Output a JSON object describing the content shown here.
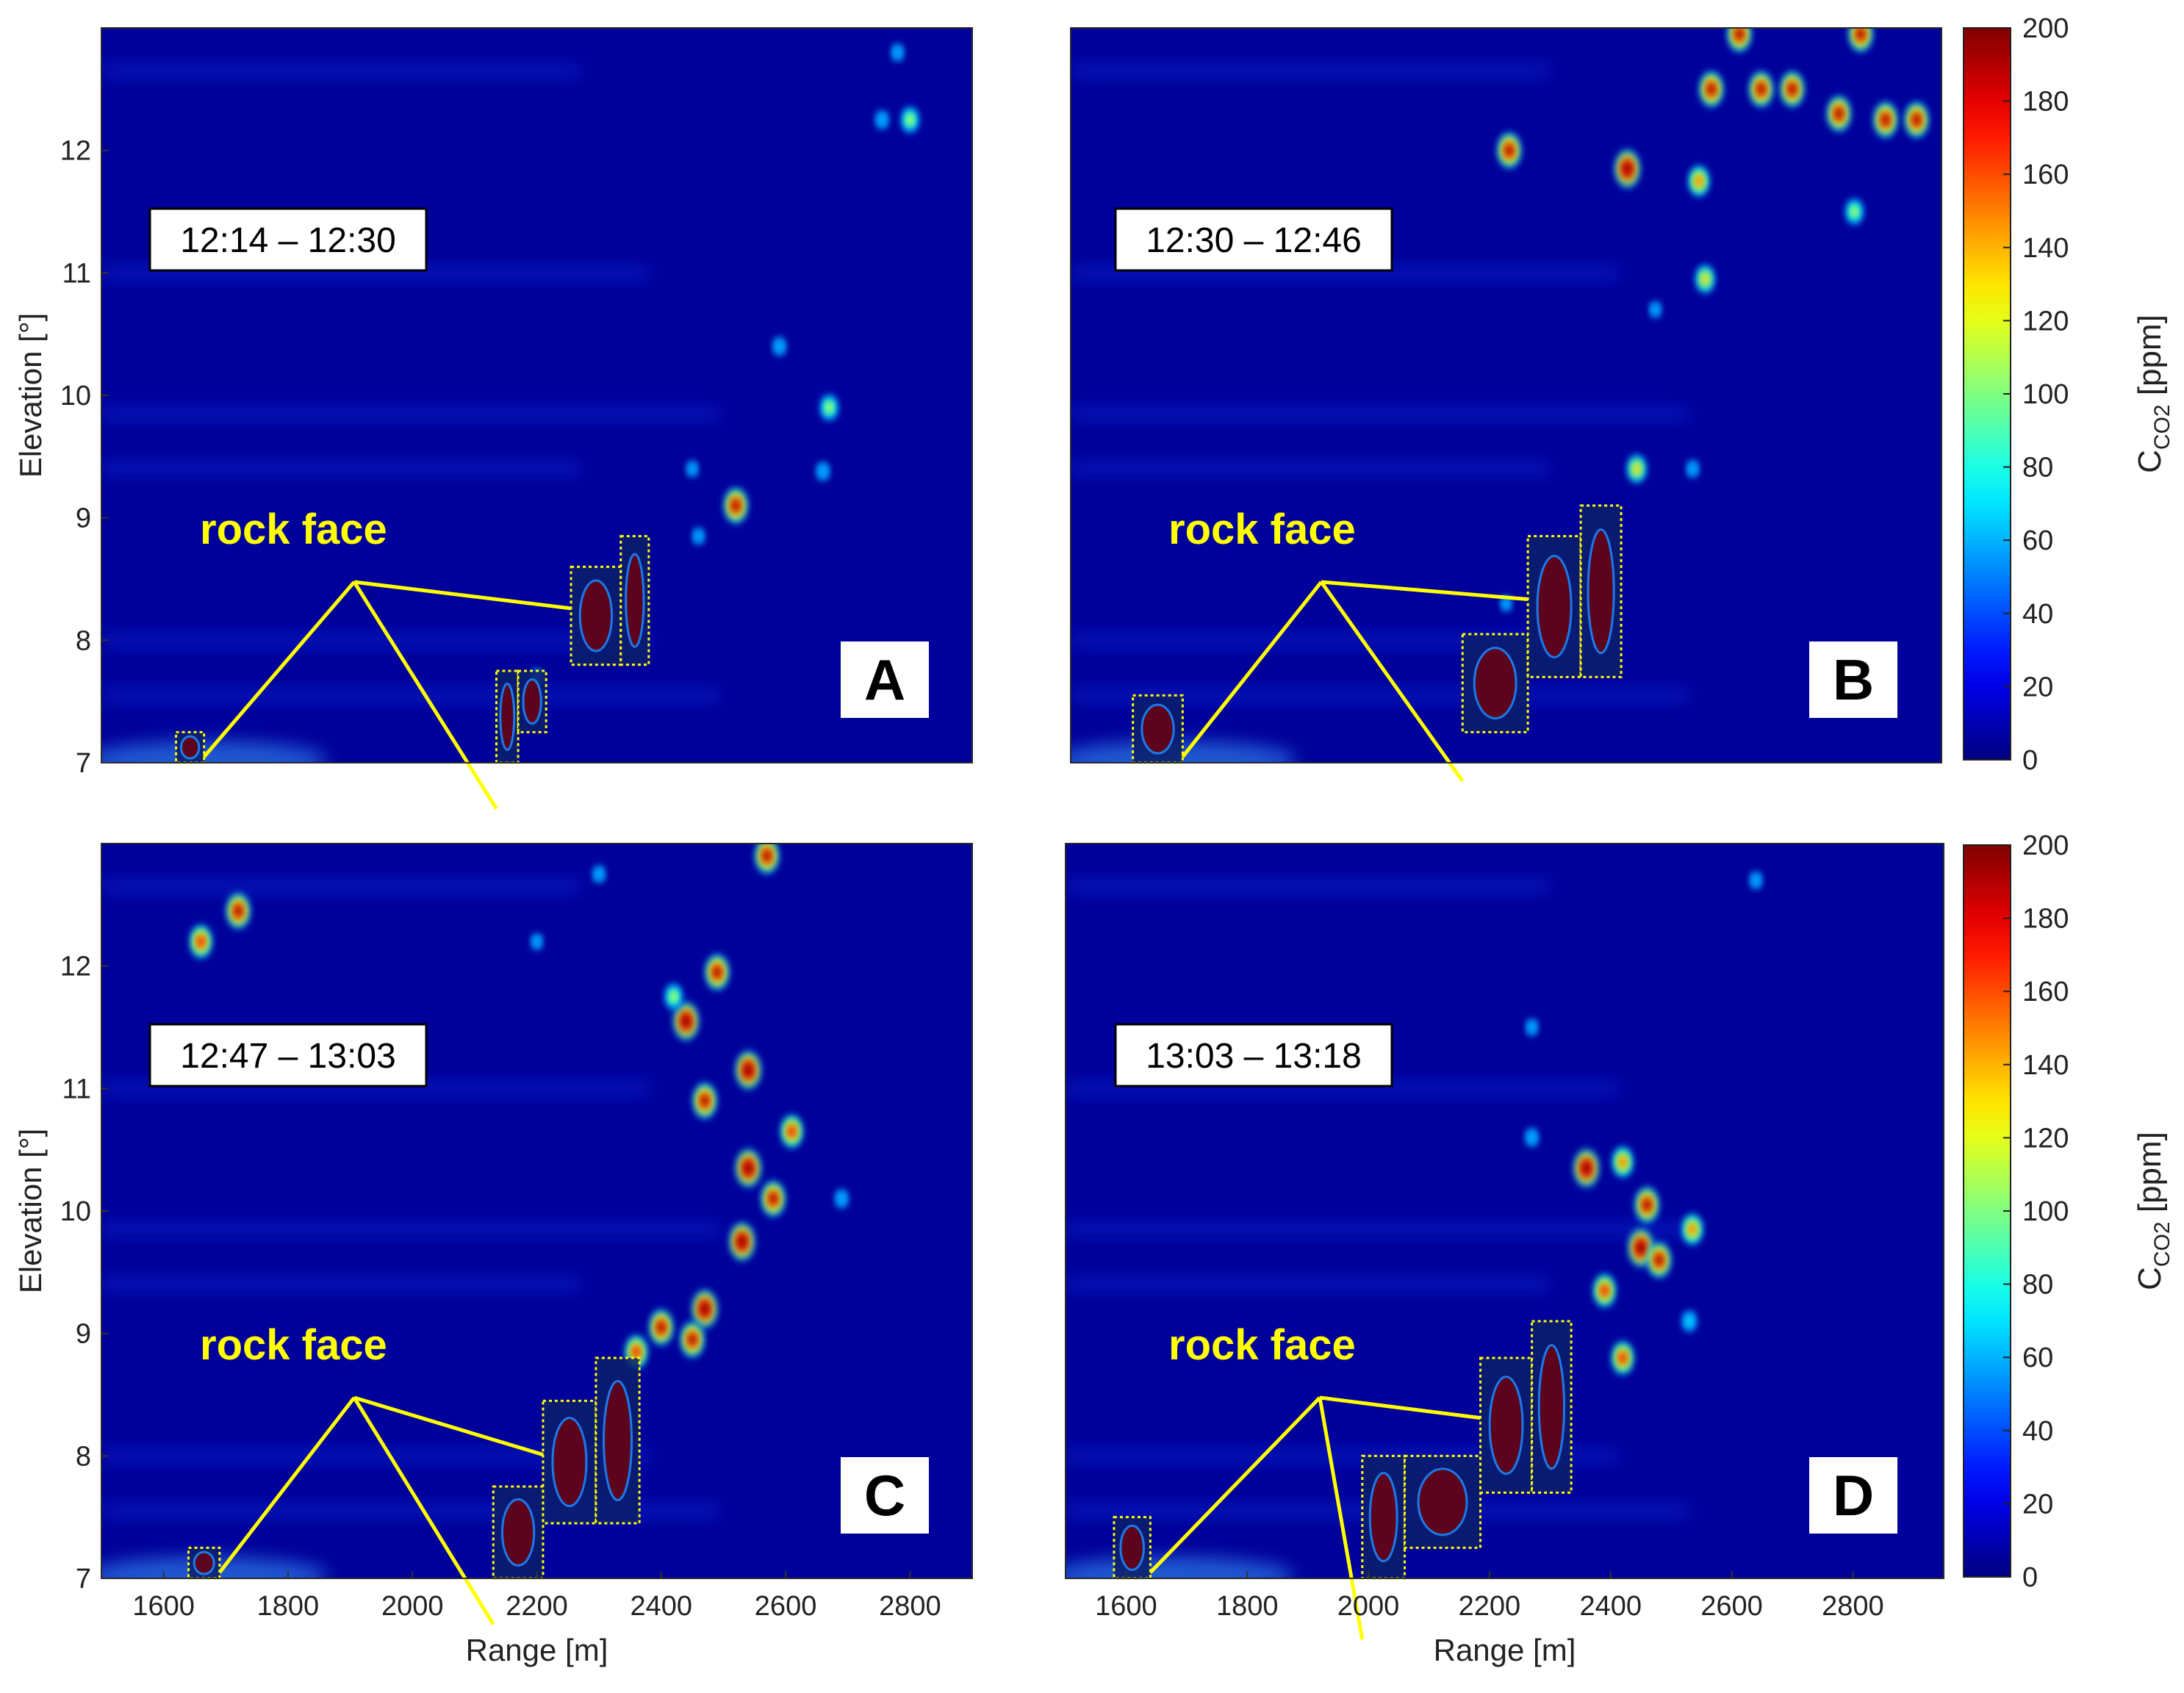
{
  "colors": {
    "background_field": "#00009a",
    "annotation_yellow": "#ffff00",
    "label_box_fill": "#ffffff",
    "colormap": "jet"
  },
  "shared_axes": {
    "xlabel": "Range [m]",
    "ylabel": "Elevation [°]",
    "xlim": [
      1500,
      2900
    ],
    "ylim": [
      7,
      13
    ],
    "x_ticks": [
      "1600",
      "1800",
      "2000",
      "2200",
      "2400",
      "2600",
      "2800"
    ],
    "y_ticks": [
      "7",
      "8",
      "9",
      "10",
      "11",
      "12"
    ]
  },
  "colorbar": {
    "label_main": "C",
    "label_sub": "CO2",
    "label_unit": " [ppm]",
    "range": [
      0,
      200
    ],
    "ticks": [
      "0",
      "20",
      "40",
      "60",
      "80",
      "100",
      "120",
      "140",
      "160",
      "180",
      "200"
    ]
  },
  "annotation_text": "rock face",
  "chart_data": [
    {
      "type": "heatmap",
      "panel": "A",
      "time_window": "12:14 – 12:30",
      "xlabel": "",
      "ylabel": "Elevation [°]",
      "xlim": [
        1500,
        2900
      ],
      "ylim": [
        7,
        13
      ],
      "blobs": [
        {
          "x": 2520,
          "y": 9.1,
          "value": 200
        },
        {
          "x": 2670,
          "y": 9.9,
          "value": 120
        },
        {
          "x": 2660,
          "y": 9.38,
          "value": 60
        },
        {
          "x": 2800,
          "y": 12.25,
          "value": 120
        },
        {
          "x": 2755,
          "y": 12.25,
          "value": 60
        },
        {
          "x": 2780,
          "y": 12.8,
          "value": 50
        },
        {
          "x": 2590,
          "y": 10.4,
          "value": 60
        },
        {
          "x": 2460,
          "y": 8.85,
          "value": 45
        },
        {
          "x": 2450,
          "y": 9.4,
          "value": 40
        },
        {
          "x": 2200,
          "y": 7.7,
          "value": 35
        }
      ],
      "rock_face_regions": [
        {
          "x0": 1620,
          "x1": 1665,
          "y0": 7.0,
          "y1": 7.25
        },
        {
          "x0": 2135,
          "x1": 2170,
          "y0": 7.0,
          "y1": 7.75
        },
        {
          "x0": 2170,
          "x1": 2215,
          "y0": 7.25,
          "y1": 7.75
        },
        {
          "x0": 2255,
          "x1": 2335,
          "y0": 7.8,
          "y1": 8.6
        },
        {
          "x0": 2335,
          "x1": 2380,
          "y0": 7.8,
          "y1": 8.85
        }
      ]
    },
    {
      "type": "heatmap",
      "panel": "B",
      "time_window": "12:30 – 12:46",
      "xlabel": "",
      "ylabel": "",
      "xlim": [
        1500,
        2900
      ],
      "ylim": [
        7,
        13
      ],
      "blobs": [
        {
          "x": 2395,
          "y": 11.85,
          "value": 220
        },
        {
          "x": 2205,
          "y": 12.0,
          "value": 200
        },
        {
          "x": 2575,
          "y": 12.95,
          "value": 200
        },
        {
          "x": 2530,
          "y": 12.5,
          "value": 200
        },
        {
          "x": 2610,
          "y": 12.5,
          "value": 200
        },
        {
          "x": 2660,
          "y": 12.5,
          "value": 200
        },
        {
          "x": 2735,
          "y": 12.3,
          "value": 200
        },
        {
          "x": 2810,
          "y": 12.25,
          "value": 200
        },
        {
          "x": 2860,
          "y": 12.25,
          "value": 200
        },
        {
          "x": 2770,
          "y": 12.95,
          "value": 200
        },
        {
          "x": 2510,
          "y": 11.75,
          "value": 160
        },
        {
          "x": 2520,
          "y": 10.95,
          "value": 140
        },
        {
          "x": 2760,
          "y": 11.5,
          "value": 120
        },
        {
          "x": 2410,
          "y": 9.4,
          "value": 140
        },
        {
          "x": 2500,
          "y": 9.4,
          "value": 50
        },
        {
          "x": 2440,
          "y": 10.7,
          "value": 40
        },
        {
          "x": 2200,
          "y": 8.3,
          "value": 35
        }
      ],
      "rock_face_regions": [
        {
          "x0": 1600,
          "x1": 1680,
          "y0": 7.0,
          "y1": 7.55
        },
        {
          "x0": 2130,
          "x1": 2235,
          "y0": 7.25,
          "y1": 8.05
        },
        {
          "x0": 2235,
          "x1": 2320,
          "y0": 7.7,
          "y1": 8.85
        },
        {
          "x0": 2320,
          "x1": 2385,
          "y0": 7.7,
          "y1": 9.1
        }
      ]
    },
    {
      "type": "heatmap",
      "panel": "C",
      "time_window": "12:47 – 13:03",
      "xlabel": "Range [m]",
      "ylabel": "Elevation [°]",
      "xlim": [
        1500,
        2900
      ],
      "ylim": [
        7,
        13
      ],
      "blobs": [
        {
          "x": 1660,
          "y": 12.2,
          "value": 180
        },
        {
          "x": 1720,
          "y": 12.45,
          "value": 200
        },
        {
          "x": 2440,
          "y": 11.55,
          "value": 220
        },
        {
          "x": 2490,
          "y": 11.95,
          "value": 200
        },
        {
          "x": 2420,
          "y": 11.75,
          "value": 120
        },
        {
          "x": 2470,
          "y": 10.9,
          "value": 200
        },
        {
          "x": 2540,
          "y": 11.15,
          "value": 220
        },
        {
          "x": 2540,
          "y": 10.35,
          "value": 220
        },
        {
          "x": 2580,
          "y": 10.1,
          "value": 200
        },
        {
          "x": 2610,
          "y": 10.65,
          "value": 180
        },
        {
          "x": 2530,
          "y": 9.75,
          "value": 220
        },
        {
          "x": 2470,
          "y": 9.2,
          "value": 220
        },
        {
          "x": 2450,
          "y": 8.95,
          "value": 200
        },
        {
          "x": 2400,
          "y": 9.05,
          "value": 200
        },
        {
          "x": 2360,
          "y": 8.85,
          "value": 180
        },
        {
          "x": 2570,
          "y": 12.9,
          "value": 200
        },
        {
          "x": 2690,
          "y": 10.1,
          "value": 60
        },
        {
          "x": 2300,
          "y": 12.75,
          "value": 50
        },
        {
          "x": 2200,
          "y": 12.2,
          "value": 40
        }
      ],
      "rock_face_regions": [
        {
          "x0": 1640,
          "x1": 1690,
          "y0": 7.0,
          "y1": 7.25
        },
        {
          "x0": 2130,
          "x1": 2210,
          "y0": 7.0,
          "y1": 7.75
        },
        {
          "x0": 2210,
          "x1": 2295,
          "y0": 7.45,
          "y1": 8.45
        },
        {
          "x0": 2295,
          "x1": 2365,
          "y0": 7.45,
          "y1": 8.8
        }
      ]
    },
    {
      "type": "heatmap",
      "panel": "D",
      "time_window": "13:03 – 13:18",
      "xlabel": "Range [m]",
      "ylabel": "",
      "xlim": [
        1500,
        2950
      ],
      "ylim": [
        7,
        13
      ],
      "blobs": [
        {
          "x": 2360,
          "y": 10.35,
          "value": 220
        },
        {
          "x": 2450,
          "y": 9.7,
          "value": 220
        },
        {
          "x": 2460,
          "y": 10.05,
          "value": 200
        },
        {
          "x": 2480,
          "y": 9.6,
          "value": 200
        },
        {
          "x": 2390,
          "y": 9.35,
          "value": 180
        },
        {
          "x": 2420,
          "y": 8.8,
          "value": 180
        },
        {
          "x": 2420,
          "y": 10.4,
          "value": 160
        },
        {
          "x": 2535,
          "y": 9.85,
          "value": 160
        },
        {
          "x": 2530,
          "y": 9.1,
          "value": 80
        },
        {
          "x": 2270,
          "y": 10.6,
          "value": 60
        },
        {
          "x": 2270,
          "y": 11.5,
          "value": 45
        },
        {
          "x": 2640,
          "y": 12.7,
          "value": 50
        }
      ],
      "rock_face_regions": [
        {
          "x0": 1580,
          "x1": 1640,
          "y0": 7.0,
          "y1": 7.5
        },
        {
          "x0": 1990,
          "x1": 2060,
          "y0": 7.0,
          "y1": 8.0
        },
        {
          "x0": 2060,
          "x1": 2185,
          "y0": 7.25,
          "y1": 8.0
        },
        {
          "x0": 2185,
          "x1": 2270,
          "y0": 7.7,
          "y1": 8.8
        },
        {
          "x0": 2270,
          "x1": 2335,
          "y0": 7.7,
          "y1": 9.1
        }
      ]
    }
  ]
}
